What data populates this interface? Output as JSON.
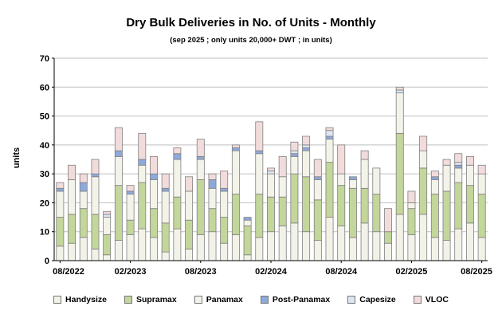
{
  "chart_data": {
    "type": "bar",
    "stacked": true,
    "title": "Dry Bulk Deliveries in No. of Units - Monthly",
    "subtitle": "(sep 2025 ; only units 20,000+ DWT ; in units)",
    "ylabel": "units",
    "xlabel": "",
    "ylim": [
      0,
      70
    ],
    "yticks": [
      0,
      10,
      20,
      30,
      40,
      50,
      60,
      70
    ],
    "grid": true,
    "legend_position": "bottom",
    "categories": [
      "08/2022",
      "09/2022",
      "10/2022",
      "11/2022",
      "12/2022",
      "01/2023",
      "02/2023",
      "03/2023",
      "04/2023",
      "05/2023",
      "06/2023",
      "07/2023",
      "08/2023",
      "09/2023",
      "10/2023",
      "11/2023",
      "12/2023",
      "01/2024",
      "02/2024",
      "03/2024",
      "04/2024",
      "05/2024",
      "06/2024",
      "07/2024",
      "08/2024",
      "09/2024",
      "10/2024",
      "11/2024",
      "12/2024",
      "01/2025",
      "02/2025",
      "03/2025",
      "04/2025",
      "05/2025",
      "06/2025",
      "07/2025",
      "08/2025"
    ],
    "x_tick_labels": [
      {
        "index": 0,
        "label": "08/2022"
      },
      {
        "index": 6,
        "label": "02/2023"
      },
      {
        "index": 12,
        "label": "08/2023"
      },
      {
        "index": 18,
        "label": "02/2024"
      },
      {
        "index": 24,
        "label": "08/2024"
      },
      {
        "index": 30,
        "label": "02/2025"
      },
      {
        "index": 36,
        "label": "08/2025"
      }
    ],
    "series": [
      {
        "name": "Handysize",
        "color": "#f2f2e8",
        "values": [
          5,
          6,
          8,
          4,
          2,
          7,
          9,
          11,
          8,
          3,
          11,
          4,
          9,
          10,
          6,
          9,
          2,
          8,
          10,
          12,
          13,
          10,
          7,
          15,
          12,
          8,
          13,
          10,
          6,
          16,
          9,
          16,
          8,
          7,
          11,
          13,
          8
        ]
      },
      {
        "name": "Supramax",
        "color": "#c3d69b",
        "values": [
          10,
          10,
          10,
          12,
          7,
          19,
          5,
          16,
          10,
          10,
          11,
          10,
          19,
          8,
          9,
          14,
          10,
          15,
          12,
          10,
          17,
          19,
          14,
          19,
          14,
          17,
          12,
          13,
          4,
          28,
          9,
          16,
          15,
          17,
          16,
          13,
          15
        ]
      },
      {
        "name": "Panamax",
        "color": "#f3f3ea",
        "values": [
          9,
          12,
          6,
          13,
          6,
          10,
          9,
          6,
          10,
          11,
          13,
          10,
          7,
          7,
          9,
          15,
          2,
          14,
          8,
          7,
          6,
          9,
          7,
          8,
          4,
          3,
          10,
          9,
          0,
          14,
          2,
          6,
          5,
          9,
          5,
          7,
          7
        ]
      },
      {
        "name": "Post-Panamax",
        "color": "#8ea9db",
        "values": [
          1,
          0,
          3,
          1,
          0,
          2,
          1,
          2,
          2,
          1,
          2,
          0,
          1,
          3,
          1,
          1,
          1,
          1,
          0,
          0,
          1,
          1,
          1,
          1,
          0,
          1,
          0,
          0,
          0,
          0,
          0,
          0,
          1,
          0,
          1,
          0,
          0
        ]
      },
      {
        "name": "Capesize",
        "color": "#dce6f1",
        "values": [
          0,
          0,
          0,
          0,
          1,
          0,
          0,
          0,
          0,
          0,
          0,
          0,
          0,
          0,
          0,
          0,
          0,
          0,
          1,
          0,
          1,
          1,
          0,
          2,
          0,
          0,
          0,
          0,
          0,
          1,
          0,
          0,
          0,
          0,
          1,
          0,
          0
        ]
      },
      {
        "name": "VLOC",
        "color": "#f2dcdb",
        "values": [
          2,
          5,
          3,
          5,
          1,
          8,
          2,
          9,
          6,
          5,
          2,
          5,
          6,
          2,
          6,
          1,
          0,
          10,
          1,
          7,
          3,
          3,
          6,
          1,
          10,
          0,
          3,
          0,
          8,
          1,
          4,
          5,
          2,
          2,
          3,
          3,
          3
        ]
      }
    ]
  }
}
